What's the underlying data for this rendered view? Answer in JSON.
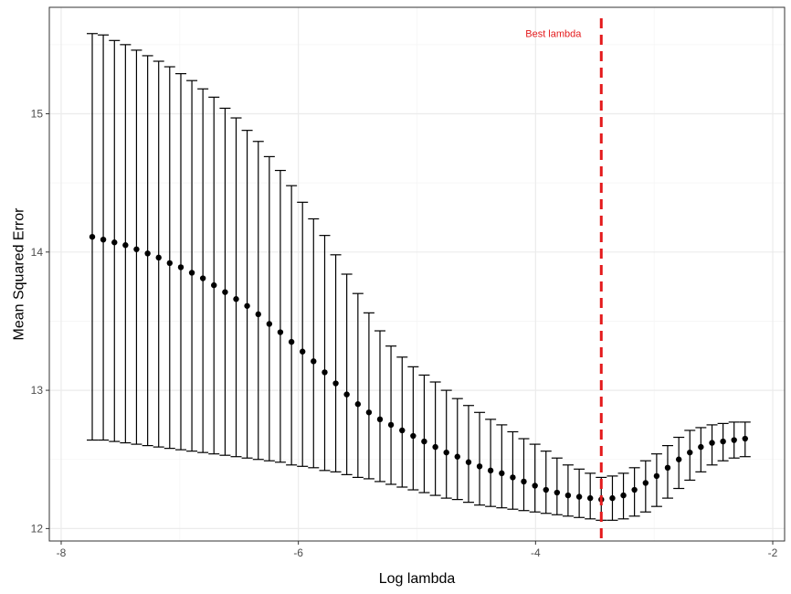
{
  "chart_data": {
    "type": "scatter",
    "xlabel": "Log lambda",
    "ylabel": "Mean Squared Error",
    "xlim": [
      -8.1,
      -1.9
    ],
    "ylim": [
      11.91,
      15.77
    ],
    "x_ticks": [
      -8,
      -6,
      -4,
      -2
    ],
    "x_tick_labels": [
      "-8",
      "-6",
      "-4",
      "-2"
    ],
    "y_ticks": [
      12,
      13,
      14,
      15
    ],
    "y_tick_labels": [
      "12",
      "13",
      "14",
      "15"
    ],
    "grid": true,
    "legend": "none",
    "error_bars": true,
    "series": [
      {
        "x": [
          -7.738,
          -7.645,
          -7.551,
          -7.458,
          -7.365,
          -7.271,
          -7.178,
          -7.085,
          -6.991,
          -6.898,
          -6.805,
          -6.712,
          -6.618,
          -6.525,
          -6.432,
          -6.338,
          -6.245,
          -6.152,
          -6.058,
          -5.965,
          -5.872,
          -5.778,
          -5.685,
          -5.592,
          -5.498,
          -5.405,
          -5.312,
          -5.219,
          -5.125,
          -5.032,
          -4.939,
          -4.845,
          -4.752,
          -4.659,
          -4.565,
          -4.472,
          -4.379,
          -4.285,
          -4.192,
          -4.099,
          -4.005,
          -3.912,
          -3.819,
          -3.726,
          -3.632,
          -3.539,
          -3.446,
          -3.352,
          -3.259,
          -3.166,
          -3.072,
          -2.979,
          -2.886,
          -2.792,
          -2.699,
          -2.606,
          -2.512,
          -2.419,
          -2.326,
          -2.233
        ],
        "y": [
          14.11,
          14.09,
          14.07,
          14.05,
          14.02,
          13.99,
          13.96,
          13.92,
          13.89,
          13.85,
          13.81,
          13.76,
          13.71,
          13.66,
          13.61,
          13.55,
          13.48,
          13.42,
          13.35,
          13.28,
          13.21,
          13.13,
          13.05,
          12.97,
          12.9,
          12.84,
          12.79,
          12.75,
          12.71,
          12.67,
          12.63,
          12.59,
          12.55,
          12.52,
          12.48,
          12.45,
          12.42,
          12.4,
          12.37,
          12.34,
          12.31,
          12.28,
          12.26,
          12.24,
          12.23,
          12.22,
          12.21,
          12.22,
          12.24,
          12.28,
          12.33,
          12.38,
          12.44,
          12.5,
          12.55,
          12.59,
          12.62,
          12.63,
          12.64,
          12.65
        ],
        "ymin": [
          12.64,
          12.64,
          12.63,
          12.62,
          12.61,
          12.6,
          12.59,
          12.58,
          12.57,
          12.56,
          12.55,
          12.54,
          12.53,
          12.52,
          12.51,
          12.5,
          12.49,
          12.48,
          12.46,
          12.45,
          12.44,
          12.42,
          12.41,
          12.39,
          12.37,
          12.36,
          12.34,
          12.32,
          12.3,
          12.28,
          12.26,
          12.24,
          12.22,
          12.21,
          12.19,
          12.17,
          12.16,
          12.15,
          12.14,
          12.13,
          12.12,
          12.11,
          12.1,
          12.09,
          12.08,
          12.07,
          12.06,
          12.06,
          12.07,
          12.09,
          12.12,
          12.16,
          12.22,
          12.29,
          12.35,
          12.41,
          12.46,
          12.49,
          12.51,
          12.52
        ],
        "ymax": [
          15.58,
          15.57,
          15.53,
          15.5,
          15.46,
          15.42,
          15.38,
          15.34,
          15.29,
          15.24,
          15.18,
          15.12,
          15.04,
          14.97,
          14.88,
          14.8,
          14.69,
          14.59,
          14.48,
          14.36,
          14.24,
          14.12,
          13.98,
          13.84,
          13.7,
          13.56,
          13.43,
          13.32,
          13.24,
          13.17,
          13.11,
          13.06,
          13.0,
          12.94,
          12.89,
          12.84,
          12.79,
          12.75,
          12.7,
          12.65,
          12.61,
          12.56,
          12.51,
          12.46,
          12.43,
          12.4,
          12.37,
          12.38,
          12.4,
          12.44,
          12.49,
          12.54,
          12.6,
          12.66,
          12.71,
          12.73,
          12.75,
          12.76,
          12.77,
          12.77
        ]
      }
    ],
    "reference_line": {
      "orientation": "vertical",
      "x": -3.446,
      "style": "dashed",
      "color": "#e41a1c"
    },
    "annotations": [
      {
        "text": "Best lambda",
        "x": -3.85,
        "y": 15.58,
        "color": "#e41a1c"
      }
    ]
  },
  "colors": {
    "panel_border": "#333333",
    "grid_major": "#ebebeb",
    "grid_minor": "#f5f5f5",
    "points": "#000000",
    "accent": "#e41a1c"
  }
}
